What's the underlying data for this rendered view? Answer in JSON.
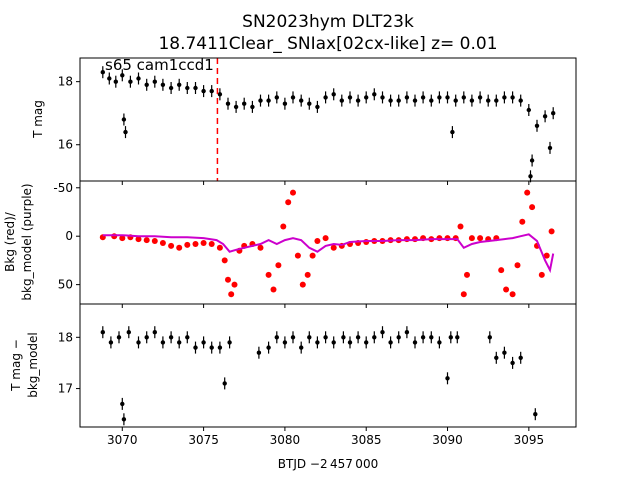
{
  "figure": {
    "title_line1": "SN2023hym  DLT23k",
    "title_line2": "18.7411Clear_ SNIax[02cx-like] z= 0.01",
    "xlabel": "BTJD −2 457 000"
  },
  "chart_data": [
    {
      "type": "scatter",
      "panel": "top",
      "ylabel": "T mag",
      "annotation": "s65 cam1ccd1",
      "y_inverted": true,
      "xlim": [
        3067.4,
        3097.9
      ],
      "ylim": [
        18.75,
        14.85
      ],
      "yticks": [
        16,
        18
      ],
      "marker_line_x": 3075.85,
      "marker_line_color": "#ff0000",
      "series_color": "#000000",
      "points": [
        [
          3068.8,
          18.3
        ],
        [
          3069.2,
          18.1
        ],
        [
          3069.6,
          18.0
        ],
        [
          3070.0,
          18.2
        ],
        [
          3070.1,
          16.8
        ],
        [
          3070.2,
          16.4
        ],
        [
          3070.5,
          18.0
        ],
        [
          3071.0,
          18.1
        ],
        [
          3071.5,
          17.9
        ],
        [
          3072.0,
          18.0
        ],
        [
          3072.5,
          17.9
        ],
        [
          3073.0,
          17.8
        ],
        [
          3073.5,
          17.9
        ],
        [
          3074.0,
          17.8
        ],
        [
          3074.5,
          17.8
        ],
        [
          3075.0,
          17.7
        ],
        [
          3075.5,
          17.7
        ],
        [
          3076.0,
          17.6
        ],
        [
          3076.5,
          17.3
        ],
        [
          3077.0,
          17.2
        ],
        [
          3077.5,
          17.3
        ],
        [
          3078.0,
          17.2
        ],
        [
          3078.5,
          17.4
        ],
        [
          3079.0,
          17.4
        ],
        [
          3079.5,
          17.5
        ],
        [
          3080.0,
          17.3
        ],
        [
          3080.5,
          17.5
        ],
        [
          3081.0,
          17.4
        ],
        [
          3081.5,
          17.3
        ],
        [
          3082.0,
          17.2
        ],
        [
          3082.5,
          17.5
        ],
        [
          3083.0,
          17.6
        ],
        [
          3083.5,
          17.4
        ],
        [
          3084.0,
          17.5
        ],
        [
          3084.5,
          17.4
        ],
        [
          3085.0,
          17.5
        ],
        [
          3085.5,
          17.6
        ],
        [
          3086.0,
          17.5
        ],
        [
          3086.5,
          17.4
        ],
        [
          3087.0,
          17.4
        ],
        [
          3087.5,
          17.5
        ],
        [
          3088.0,
          17.4
        ],
        [
          3088.5,
          17.5
        ],
        [
          3089.0,
          17.4
        ],
        [
          3089.5,
          17.5
        ],
        [
          3090.0,
          17.5
        ],
        [
          3090.3,
          16.4
        ],
        [
          3090.5,
          17.4
        ],
        [
          3091.0,
          17.5
        ],
        [
          3091.5,
          17.4
        ],
        [
          3092.0,
          17.5
        ],
        [
          3092.5,
          17.4
        ],
        [
          3093.0,
          17.4
        ],
        [
          3093.5,
          17.5
        ],
        [
          3094.0,
          17.5
        ],
        [
          3094.5,
          17.4
        ],
        [
          3095.0,
          17.1
        ],
        [
          3095.1,
          15.0
        ],
        [
          3095.2,
          15.5
        ],
        [
          3095.5,
          16.6
        ],
        [
          3096.0,
          16.9
        ],
        [
          3096.3,
          15.9
        ],
        [
          3096.5,
          17.0
        ]
      ]
    },
    {
      "type": "scatter",
      "panel": "middle",
      "ylabel_line1": "Bkg (red)/",
      "ylabel_line2": "bkg_model (purple)",
      "xlim": [
        3067.4,
        3097.9
      ],
      "ylim": [
        -57,
        70
      ],
      "yticks": [
        -50,
        0,
        50
      ],
      "series": [
        {
          "name": "Bkg",
          "color": "#ff0000",
          "points": [
            [
              3068.8,
              1
            ],
            [
              3069.5,
              0
            ],
            [
              3070.0,
              2
            ],
            [
              3070.5,
              1
            ],
            [
              3071.0,
              3
            ],
            [
              3071.5,
              4
            ],
            [
              3072.0,
              5
            ],
            [
              3072.5,
              7
            ],
            [
              3073.0,
              10
            ],
            [
              3073.5,
              12
            ],
            [
              3074.0,
              9
            ],
            [
              3074.5,
              8
            ],
            [
              3075.0,
              7
            ],
            [
              3075.5,
              8
            ],
            [
              3076.0,
              12
            ],
            [
              3076.3,
              25
            ],
            [
              3076.5,
              45
            ],
            [
              3076.7,
              60
            ],
            [
              3076.9,
              50
            ],
            [
              3077.2,
              15
            ],
            [
              3077.5,
              10
            ],
            [
              3078.0,
              8
            ],
            [
              3078.5,
              12
            ],
            [
              3079.0,
              40
            ],
            [
              3079.3,
              55
            ],
            [
              3079.6,
              30
            ],
            [
              3079.9,
              -10
            ],
            [
              3080.2,
              -35
            ],
            [
              3080.5,
              -45
            ],
            [
              3080.8,
              20
            ],
            [
              3081.1,
              50
            ],
            [
              3081.4,
              40
            ],
            [
              3081.7,
              20
            ],
            [
              3082.0,
              5
            ],
            [
              3082.5,
              2
            ],
            [
              3083.0,
              12
            ],
            [
              3083.5,
              10
            ],
            [
              3084.0,
              8
            ],
            [
              3084.5,
              7
            ],
            [
              3085.0,
              6
            ],
            [
              3085.5,
              5
            ],
            [
              3086.0,
              5
            ],
            [
              3086.5,
              4
            ],
            [
              3087.0,
              4
            ],
            [
              3087.5,
              3
            ],
            [
              3088.0,
              3
            ],
            [
              3088.5,
              2
            ],
            [
              3089.0,
              3
            ],
            [
              3089.5,
              2
            ],
            [
              3090.0,
              2
            ],
            [
              3090.5,
              2
            ],
            [
              3090.8,
              -10
            ],
            [
              3091.0,
              60
            ],
            [
              3091.2,
              40
            ],
            [
              3091.5,
              2
            ],
            [
              3092.0,
              2
            ],
            [
              3092.5,
              3
            ],
            [
              3093.0,
              2
            ],
            [
              3093.3,
              35
            ],
            [
              3093.6,
              55
            ],
            [
              3094.0,
              60
            ],
            [
              3094.3,
              30
            ],
            [
              3094.6,
              -15
            ],
            [
              3094.9,
              -45
            ],
            [
              3095.2,
              -30
            ],
            [
              3095.5,
              10
            ],
            [
              3095.8,
              40
            ],
            [
              3096.1,
              20
            ],
            [
              3096.4,
              -5
            ]
          ]
        },
        {
          "name": "bkg_model",
          "color": "#cc00cc",
          "points": [
            [
              3068.8,
              -1
            ],
            [
              3070.0,
              -1
            ],
            [
              3071.0,
              0
            ],
            [
              3072.0,
              0
            ],
            [
              3073.0,
              1
            ],
            [
              3074.0,
              1
            ],
            [
              3075.0,
              2
            ],
            [
              3075.8,
              4
            ],
            [
              3076.2,
              8
            ],
            [
              3076.6,
              16
            ],
            [
              3077.0,
              14
            ],
            [
              3077.5,
              12
            ],
            [
              3078.0,
              10
            ],
            [
              3078.5,
              8
            ],
            [
              3079.0,
              4
            ],
            [
              3079.5,
              8
            ],
            [
              3080.0,
              4
            ],
            [
              3080.5,
              2
            ],
            [
              3081.0,
              4
            ],
            [
              3081.5,
              12
            ],
            [
              3082.0,
              16
            ],
            [
              3082.5,
              10
            ],
            [
              3083.0,
              8
            ],
            [
              3083.5,
              9
            ],
            [
              3084.0,
              6
            ],
            [
              3085.0,
              5
            ],
            [
              3086.0,
              5
            ],
            [
              3087.0,
              4
            ],
            [
              3088.0,
              4
            ],
            [
              3089.0,
              3
            ],
            [
              3090.0,
              3
            ],
            [
              3090.6,
              3
            ],
            [
              3091.0,
              12
            ],
            [
              3091.5,
              8
            ],
            [
              3092.0,
              6
            ],
            [
              3093.0,
              4
            ],
            [
              3093.5,
              3
            ],
            [
              3094.0,
              2
            ],
            [
              3094.5,
              0
            ],
            [
              3095.0,
              -2
            ],
            [
              3095.5,
              5
            ],
            [
              3096.0,
              25
            ],
            [
              3096.3,
              35
            ],
            [
              3096.5,
              18
            ]
          ]
        }
      ]
    },
    {
      "type": "scatter",
      "panel": "bottom",
      "ylabel_line1": "T mag −",
      "ylabel_line2": "bkg_model",
      "y_inverted": true,
      "xlim": [
        3067.4,
        3097.9
      ],
      "ylim": [
        18.65,
        16.25
      ],
      "yticks": [
        17,
        18
      ],
      "series_color": "#000000",
      "points": [
        [
          3068.8,
          18.1
        ],
        [
          3069.3,
          17.9
        ],
        [
          3069.8,
          18.0
        ],
        [
          3070.0,
          16.7
        ],
        [
          3070.1,
          16.4
        ],
        [
          3070.4,
          18.1
        ],
        [
          3071.0,
          17.9
        ],
        [
          3071.5,
          18.0
        ],
        [
          3072.0,
          18.1
        ],
        [
          3072.5,
          17.9
        ],
        [
          3073.0,
          18.0
        ],
        [
          3073.5,
          17.9
        ],
        [
          3074.0,
          18.0
        ],
        [
          3074.5,
          17.8
        ],
        [
          3075.0,
          17.9
        ],
        [
          3075.5,
          17.8
        ],
        [
          3076.0,
          17.8
        ],
        [
          3076.3,
          17.1
        ],
        [
          3076.6,
          17.9
        ],
        [
          3078.4,
          17.7
        ],
        [
          3079.0,
          17.8
        ],
        [
          3079.5,
          18.0
        ],
        [
          3080.0,
          17.9
        ],
        [
          3080.5,
          18.0
        ],
        [
          3081.0,
          17.8
        ],
        [
          3081.5,
          18.0
        ],
        [
          3082.0,
          17.9
        ],
        [
          3082.5,
          18.0
        ],
        [
          3083.0,
          17.9
        ],
        [
          3083.6,
          18.0
        ],
        [
          3084.0,
          17.9
        ],
        [
          3084.5,
          18.0
        ],
        [
          3085.0,
          17.9
        ],
        [
          3085.5,
          18.0
        ],
        [
          3086.0,
          18.1
        ],
        [
          3086.5,
          17.9
        ],
        [
          3087.0,
          18.0
        ],
        [
          3087.5,
          18.1
        ],
        [
          3088.0,
          17.9
        ],
        [
          3088.5,
          18.0
        ],
        [
          3089.0,
          18.0
        ],
        [
          3089.5,
          17.9
        ],
        [
          3090.0,
          17.2
        ],
        [
          3090.2,
          18.0
        ],
        [
          3090.6,
          18.0
        ],
        [
          3092.6,
          18.0
        ],
        [
          3093.0,
          17.6
        ],
        [
          3093.5,
          17.7
        ],
        [
          3094.0,
          17.5
        ],
        [
          3094.5,
          17.6
        ],
        [
          3095.4,
          16.5
        ]
      ]
    }
  ]
}
